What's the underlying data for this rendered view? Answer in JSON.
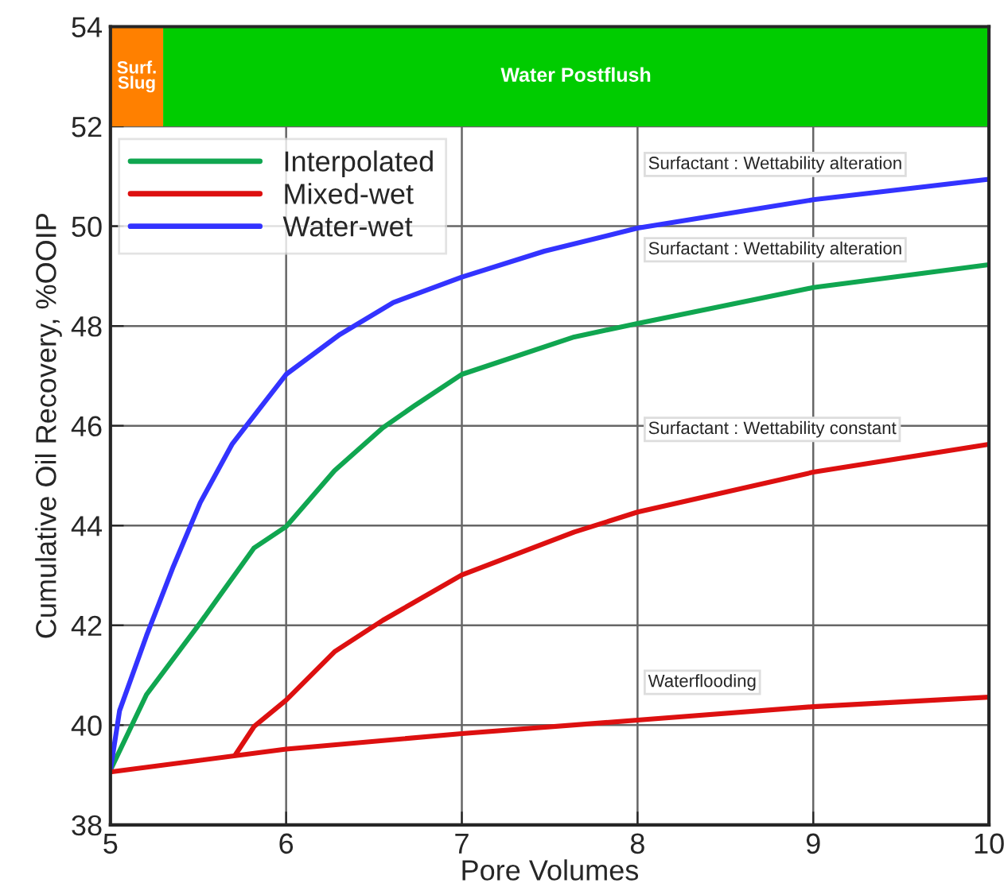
{
  "chart_data": {
    "type": "line",
    "xlabel": "Pore Volumes",
    "ylabel": "Cumulative Oil Recovery, %OOIP",
    "xlim": [
      5,
      10
    ],
    "ylim": [
      38,
      54
    ],
    "xticks": [
      5,
      6,
      7,
      8,
      9,
      10
    ],
    "yticks": [
      38,
      40,
      42,
      44,
      46,
      48,
      50,
      52,
      54
    ],
    "grid": true,
    "legend": "top left",
    "line_style": "solid",
    "marker": "none",
    "series": [
      {
        "name": "Interpolated",
        "color": "#10a650",
        "x": [
          5,
          5.205,
          5.511,
          5.817,
          6.0,
          6.275,
          6.55,
          6.73,
          7.0,
          7.64,
          8.0,
          9.0,
          10.0
        ],
        "values": [
          39.1,
          40.61,
          42.05,
          43.55,
          43.98,
          45.1,
          45.96,
          46.4,
          47.03,
          47.78,
          48.05,
          48.77,
          49.23
        ]
      },
      {
        "name": "Mixed-wet",
        "color": "#dd1010",
        "x": [
          5.71,
          5.817,
          6.0,
          6.275,
          6.55,
          7.0,
          7.64,
          8.0,
          9.0,
          10.0
        ],
        "values": [
          39.4,
          39.97,
          40.5,
          41.47,
          42.1,
          43.01,
          43.87,
          44.27,
          45.07,
          45.63
        ]
      },
      {
        "name": "Water-wet",
        "color": "#3333ff",
        "x": [
          5,
          5.052,
          5.205,
          5.358,
          5.511,
          5.694,
          6.0,
          6.306,
          6.61,
          7.0,
          7.47,
          8.0,
          9.0,
          10.0
        ],
        "values": [
          39.1,
          40.29,
          41.79,
          43.18,
          44.46,
          45.64,
          47.03,
          47.83,
          48.47,
          48.98,
          49.5,
          49.96,
          50.53,
          50.94
        ]
      },
      {
        "color": "#dd1010",
        "x": [
          5,
          6,
          7,
          8,
          9,
          10
        ],
        "values": [
          39.06,
          39.52,
          39.83,
          40.1,
          40.37,
          40.56
        ]
      }
    ],
    "bands": [
      {
        "axis": "x",
        "from": 5,
        "to": 5.3,
        "label": "Surf.\nSlug",
        "color": "#ff8000"
      },
      {
        "axis": "x",
        "from": 5.3,
        "to": 10,
        "label": "Water Postflush",
        "color": "#00cc00"
      }
    ],
    "annotations": [
      "Surfactant : Wettability alteration",
      "Surfactant : Wettability alteration",
      "Surfactant : Wettability constant",
      "Waterflooding"
    ]
  }
}
